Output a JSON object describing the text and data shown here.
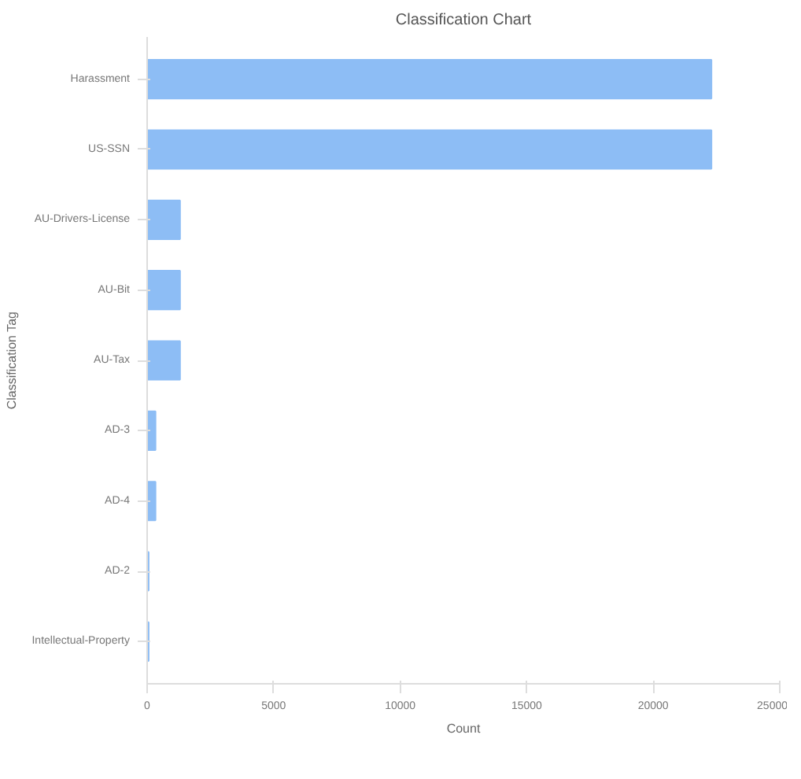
{
  "chart_data": {
    "type": "bar",
    "orientation": "horizontal",
    "title": "Classification Chart",
    "xlabel": "Count",
    "ylabel": "Classification Tag",
    "categories": [
      "Harassment",
      "US-SSN",
      "AU-Drivers-License",
      "AU-Bit",
      "AU-Tax",
      "AD-3",
      "AD-4",
      "AD-2",
      "Intellectual-Property"
    ],
    "values": [
      22300,
      22300,
      1300,
      1300,
      1300,
      330,
      330,
      60,
      60
    ],
    "color": "#8dbdf5",
    "xlim": [
      0,
      25000
    ],
    "xticks": [
      0,
      5000,
      10000,
      15000,
      20000,
      25000
    ],
    "grid": false
  }
}
